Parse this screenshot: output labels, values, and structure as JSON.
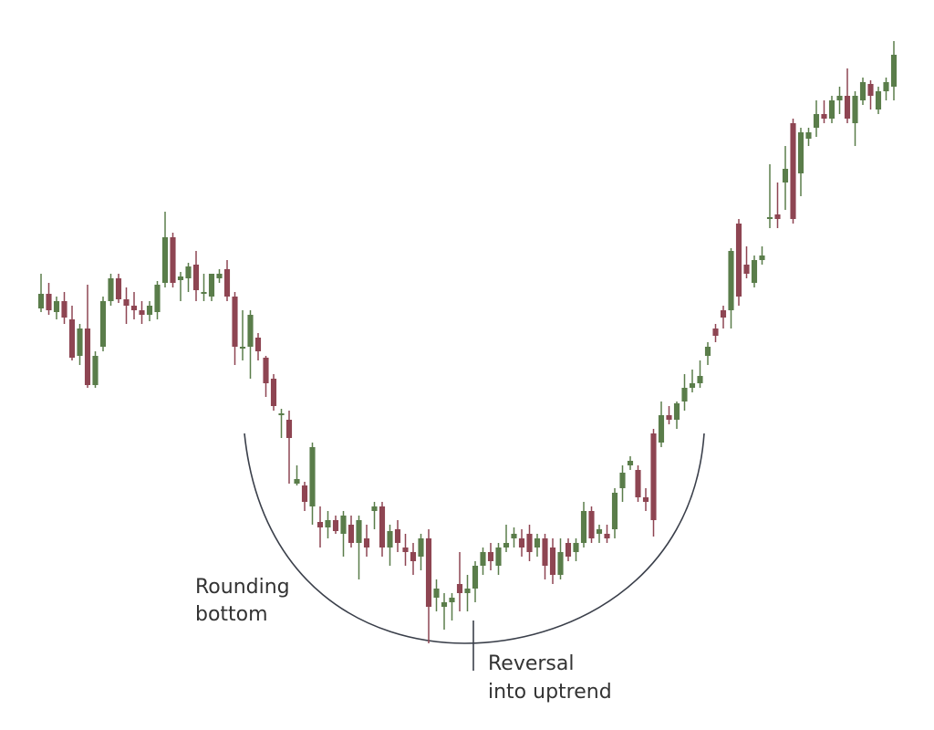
{
  "chart_data": {
    "type": "candlestick",
    "annotations": [
      [
        "Rounding",
        "bottom"
      ],
      [
        "Reversal",
        "into uptrend"
      ]
    ],
    "up_color": "#5a7d4a",
    "down_color": "#8e4552",
    "ylim": [
      0,
      800
    ],
    "ohlc": [
      [
        462,
        500,
        458,
        478
      ],
      [
        478,
        490,
        455,
        460
      ],
      [
        458,
        475,
        450,
        470
      ],
      [
        470,
        480,
        445,
        452
      ],
      [
        450,
        465,
        405,
        408
      ],
      [
        410,
        445,
        400,
        440
      ],
      [
        440,
        488,
        375,
        378
      ],
      [
        378,
        415,
        375,
        410
      ],
      [
        420,
        475,
        415,
        470
      ],
      [
        470,
        500,
        465,
        495
      ],
      [
        495,
        500,
        468,
        472
      ],
      [
        472,
        485,
        445,
        465
      ],
      [
        465,
        480,
        450,
        460
      ],
      [
        460,
        470,
        445,
        455
      ],
      [
        455,
        470,
        448,
        465
      ],
      [
        458,
        492,
        450,
        488
      ],
      [
        490,
        568,
        485,
        540
      ],
      [
        540,
        545,
        485,
        490
      ],
      [
        493,
        502,
        470,
        497
      ],
      [
        495,
        512,
        480,
        508
      ],
      [
        510,
        525,
        470,
        482
      ],
      [
        478,
        500,
        470,
        480
      ],
      [
        475,
        500,
        470,
        500
      ],
      [
        495,
        505,
        490,
        500
      ],
      [
        505,
        515,
        470,
        475
      ],
      [
        475,
        480,
        400,
        420
      ],
      [
        418,
        460,
        405,
        420
      ],
      [
        420,
        460,
        385,
        455
      ],
      [
        430,
        435,
        405,
        415
      ],
      [
        408,
        410,
        365,
        380
      ],
      [
        385,
        390,
        350,
        355
      ],
      [
        345,
        352,
        320,
        347
      ],
      [
        340,
        350,
        270,
        320
      ],
      [
        270,
        290,
        268,
        275
      ],
      [
        268,
        272,
        240,
        250
      ],
      [
        245,
        315,
        225,
        310
      ],
      [
        228,
        245,
        200,
        222
      ],
      [
        222,
        240,
        210,
        230
      ],
      [
        230,
        235,
        215,
        218
      ],
      [
        215,
        240,
        190,
        235
      ],
      [
        225,
        235,
        200,
        205
      ],
      [
        205,
        235,
        165,
        230
      ],
      [
        210,
        225,
        190,
        200
      ],
      [
        240,
        250,
        220,
        245
      ],
      [
        245,
        250,
        190,
        200
      ],
      [
        200,
        225,
        180,
        218
      ],
      [
        220,
        230,
        195,
        205
      ],
      [
        200,
        215,
        180,
        195
      ],
      [
        195,
        205,
        170,
        185
      ],
      [
        190,
        215,
        175,
        210
      ],
      [
        210,
        220,
        95,
        135
      ],
      [
        145,
        165,
        130,
        155
      ],
      [
        135,
        150,
        110,
        140
      ],
      [
        140,
        150,
        120,
        145
      ],
      [
        160,
        195,
        130,
        150
      ],
      [
        150,
        170,
        130,
        155
      ],
      [
        155,
        185,
        140,
        180
      ],
      [
        180,
        200,
        170,
        195
      ],
      [
        195,
        205,
        175,
        185
      ],
      [
        180,
        205,
        170,
        200
      ],
      [
        200,
        225,
        195,
        205
      ],
      [
        210,
        222,
        200,
        215
      ],
      [
        210,
        220,
        190,
        200
      ],
      [
        215,
        225,
        185,
        195
      ],
      [
        200,
        215,
        190,
        210
      ],
      [
        210,
        215,
        165,
        180
      ],
      [
        200,
        210,
        160,
        170
      ],
      [
        170,
        210,
        165,
        195
      ],
      [
        205,
        210,
        185,
        190
      ],
      [
        195,
        210,
        185,
        205
      ],
      [
        205,
        250,
        200,
        240
      ],
      [
        240,
        245,
        205,
        210
      ],
      [
        215,
        225,
        205,
        220
      ],
      [
        215,
        225,
        205,
        210
      ],
      [
        220,
        265,
        210,
        260
      ],
      [
        265,
        290,
        250,
        282
      ],
      [
        290,
        300,
        285,
        295
      ],
      [
        285,
        290,
        250,
        255
      ],
      [
        255,
        265,
        240,
        250
      ],
      [
        325,
        330,
        212,
        230
      ],
      [
        315,
        360,
        310,
        345
      ],
      [
        345,
        355,
        335,
        340
      ],
      [
        340,
        360,
        330,
        358
      ],
      [
        360,
        390,
        350,
        375
      ],
      [
        375,
        395,
        370,
        380
      ],
      [
        380,
        405,
        375,
        388
      ],
      [
        410,
        425,
        400,
        420
      ],
      [
        440,
        445,
        425,
        432
      ],
      [
        460,
        465,
        440,
        452
      ],
      [
        460,
        528,
        440,
        525
      ],
      [
        555,
        560,
        465,
        475
      ],
      [
        510,
        530,
        495,
        500
      ],
      [
        490,
        520,
        485,
        515
      ],
      [
        515,
        530,
        510,
        520
      ],
      [
        560,
        620,
        550,
        562
      ],
      [
        565,
        600,
        550,
        560
      ],
      [
        600,
        640,
        570,
        615
      ],
      [
        665,
        670,
        555,
        560
      ],
      [
        610,
        660,
        585,
        655
      ],
      [
        648,
        660,
        640,
        655
      ],
      [
        660,
        690,
        650,
        675
      ],
      [
        675,
        690,
        665,
        670
      ],
      [
        670,
        695,
        665,
        690
      ],
      [
        690,
        705,
        675,
        695
      ],
      [
        695,
        725,
        665,
        670
      ],
      [
        665,
        700,
        640,
        695
      ],
      [
        690,
        715,
        685,
        710
      ],
      [
        708,
        712,
        680,
        695
      ],
      [
        680,
        705,
        675,
        700
      ],
      [
        700,
        715,
        690,
        710
      ],
      [
        705,
        755,
        690,
        740
      ]
    ]
  }
}
